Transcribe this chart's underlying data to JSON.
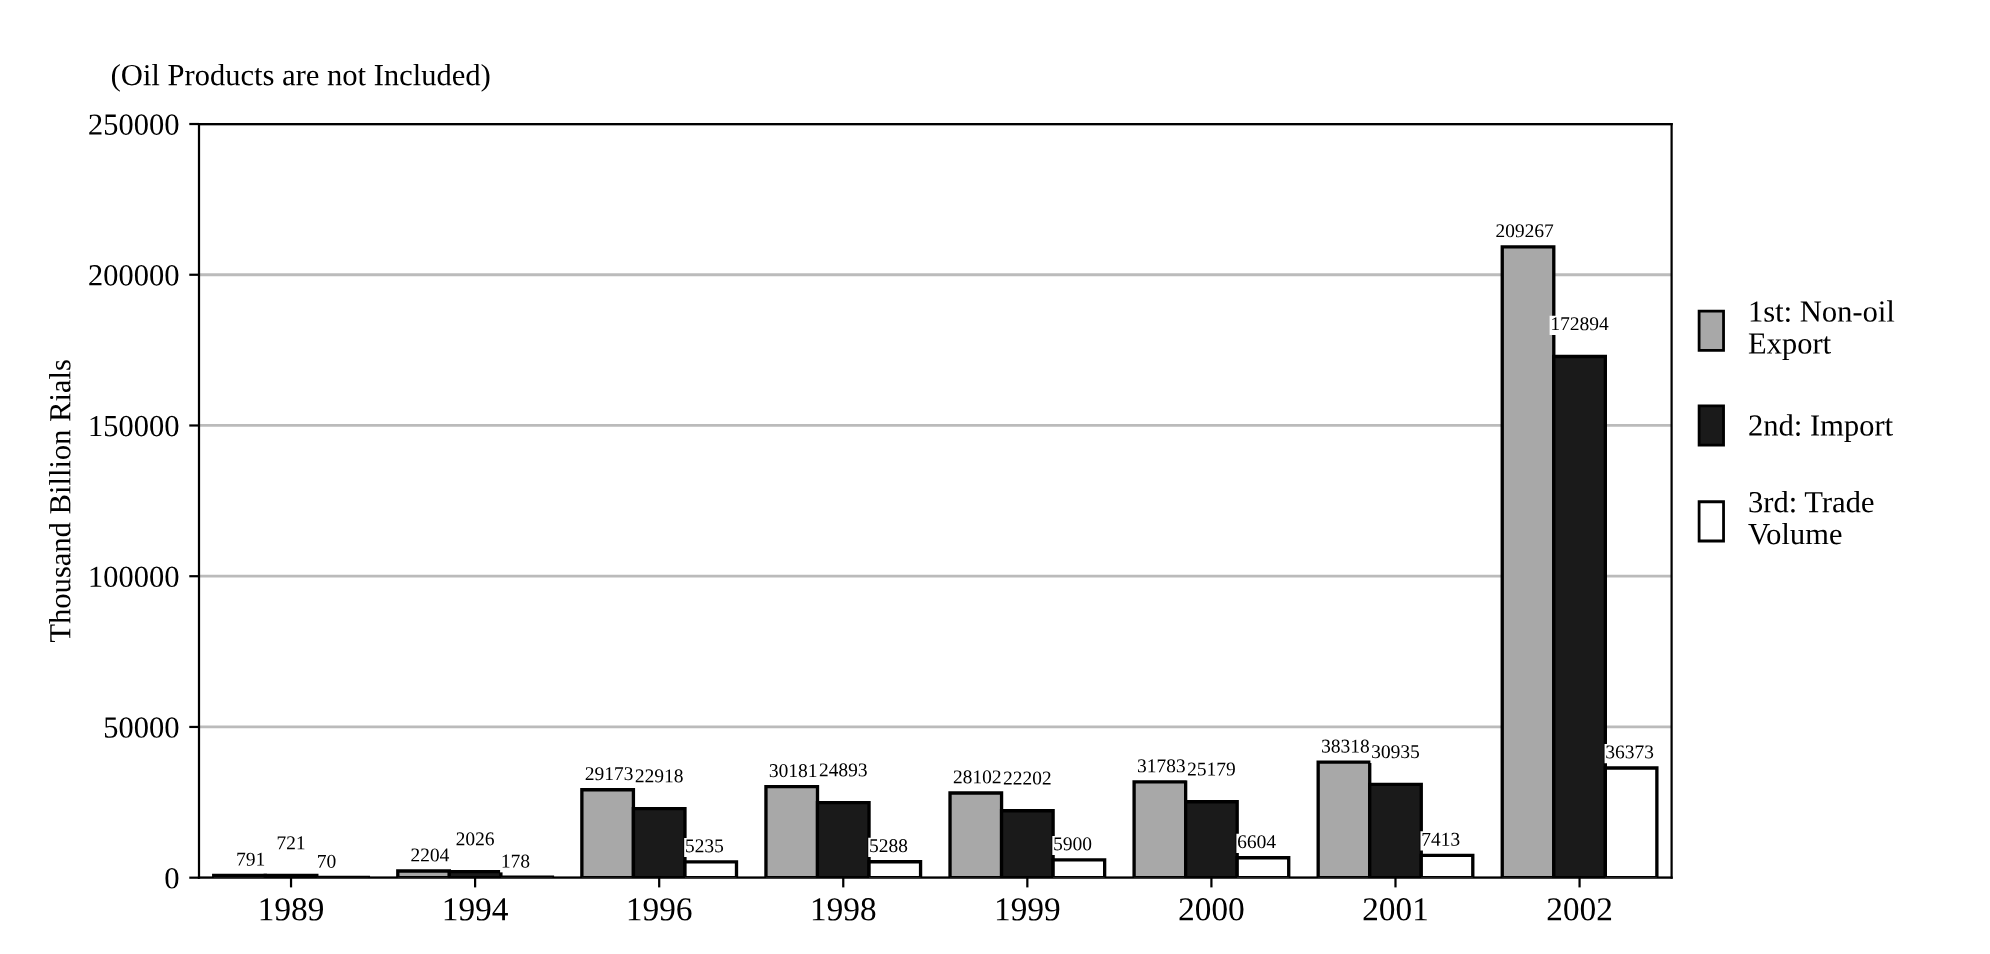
{
  "chart_data": {
    "type": "bar",
    "title": "(Oil Products are not Included)",
    "ylabel": "Thousand Billion Rials",
    "categories": [
      "1989",
      "1994",
      "1996",
      "1998",
      "1999",
      "2000",
      "2001",
      "2002"
    ],
    "series": [
      {
        "name": "1st: Non-oil\nExport",
        "color": "#a8a8a8",
        "values": [
          791,
          2204,
          29173,
          30181,
          28102,
          31783,
          38318,
          209267
        ]
      },
      {
        "name": "2nd: Import",
        "color": "#1a1a1a",
        "values": [
          721,
          2026,
          22918,
          24893,
          22202,
          25179,
          30935,
          172894
        ]
      },
      {
        "name": "3rd: Trade\nVolume",
        "color": "#ffffff",
        "values": [
          70,
          178,
          5235,
          5288,
          5900,
          6604,
          7413,
          36373
        ]
      }
    ],
    "ylim": [
      0,
      250000
    ],
    "yticks": [
      0,
      50000,
      100000,
      150000,
      200000,
      250000
    ],
    "grid": "y",
    "legend": "right",
    "data_labels": true
  }
}
